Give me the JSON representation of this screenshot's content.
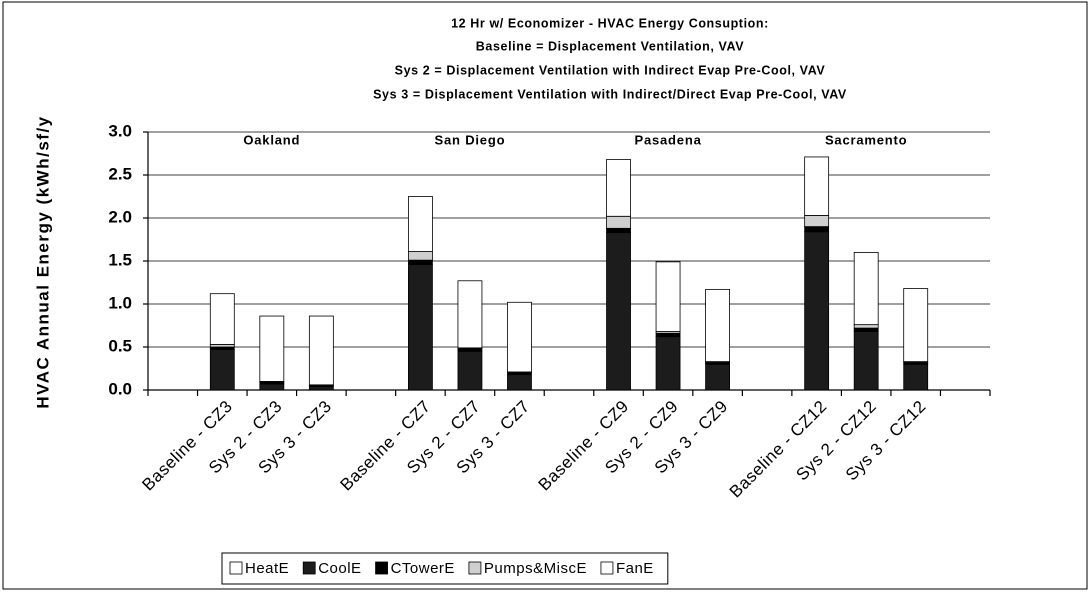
{
  "chart_data": {
    "type": "stacked-bar",
    "title": [
      "12 Hr w/ Economizer - HVAC Energy Consuption:",
      "Baseline = Displacement Ventilation, VAV",
      "Sys 2 = Displacement Ventilation with Indirect Evap Pre-Cool, VAV",
      "Sys 3 = Displacement Ventilation with Indirect/Direct Evap Pre-Cool, VAV"
    ],
    "ylabel": "HVAC Annual Energy (kWh/sf/y",
    "annotations": [
      "Oakland",
      "San Diego",
      "Pasadena",
      "Sacramento"
    ],
    "categories": [
      null,
      "Baseline - CZ3",
      "Sys 2 - CZ3",
      "Sys 3 - CZ3",
      null,
      "Baseline - CZ7",
      "Sys 2 - CZ7",
      "Sys 3 - CZ7",
      null,
      "Baseline - CZ9",
      "Sys 2 - CZ9",
      "Sys 3 - CZ9",
      null,
      "Baseline - CZ12",
      "Sys 2 - CZ12",
      "Sys 3 - CZ12",
      null
    ],
    "series": [
      {
        "name": "HeatE",
        "color": "#ffffff",
        "values": [
          null,
          0,
          0,
          0,
          null,
          0,
          0,
          0,
          null,
          0,
          0,
          0,
          null,
          0,
          0,
          0,
          null
        ]
      },
      {
        "name": "CoolE",
        "color": "#1c1c1c",
        "values": [
          null,
          0.47,
          0.07,
          0.04,
          null,
          1.46,
          0.45,
          0.18,
          null,
          1.83,
          0.62,
          0.3,
          null,
          1.84,
          0.68,
          0.3,
          null
        ]
      },
      {
        "name": "CTowerE",
        "color": "#000000",
        "values": [
          null,
          0.03,
          0.02,
          0.01,
          null,
          0.05,
          0.03,
          0.02,
          null,
          0.05,
          0.04,
          0.02,
          null,
          0.06,
          0.04,
          0.02,
          null
        ]
      },
      {
        "name": "Pumps&MiscE",
        "color": "#cfcfcf",
        "values": [
          null,
          0.03,
          0.01,
          0.01,
          null,
          0.1,
          0.01,
          0.01,
          null,
          0.14,
          0.02,
          0.01,
          null,
          0.13,
          0.04,
          0.01,
          null
        ]
      },
      {
        "name": "FanE",
        "color": "#ffffff",
        "values": [
          null,
          0.59,
          0.76,
          0.8,
          null,
          0.64,
          0.78,
          0.81,
          null,
          0.66,
          0.81,
          0.84,
          null,
          0.68,
          0.84,
          0.85,
          null
        ]
      }
    ],
    "ylim": [
      0,
      3
    ],
    "yticks": [
      {
        "value": 0,
        "label": "0.0"
      },
      0.5,
      {
        "value": 1,
        "label": "1.0"
      },
      1.5,
      {
        "value": 2,
        "label": "2.0"
      },
      2.5,
      {
        "value": 3,
        "label": "3.0"
      }
    ],
    "grid": true,
    "legend": "bottom"
  }
}
